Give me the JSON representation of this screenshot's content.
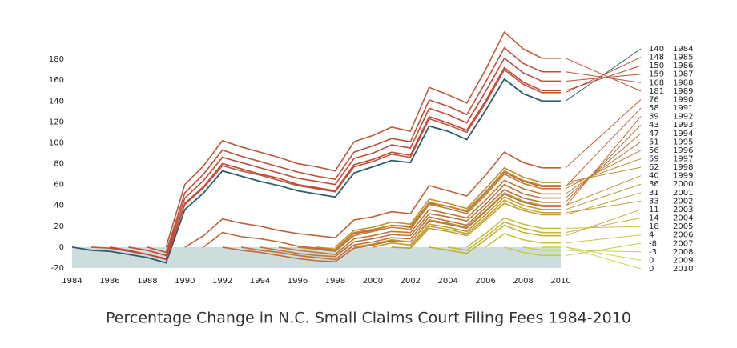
{
  "chart_data": {
    "type": "line",
    "title": "Percentage Change in N.C. Small Claims Court Filing Fees 1984-2010",
    "x": [
      1984,
      1985,
      1986,
      1987,
      1988,
      1989,
      1990,
      1991,
      1992,
      1993,
      1994,
      1995,
      1996,
      1997,
      1998,
      1999,
      2000,
      2001,
      2002,
      2003,
      2004,
      2005,
      2006,
      2007,
      2008,
      2009,
      2010
    ],
    "xlim": [
      1984,
      2010
    ],
    "xticks": [
      1984,
      1986,
      1988,
      1990,
      1992,
      1994,
      1996,
      1998,
      2000,
      2002,
      2004,
      2006,
      2008,
      2010
    ],
    "ylim": [
      -20,
      200
    ],
    "yticks": [
      -20,
      0,
      20,
      40,
      60,
      80,
      100,
      120,
      140,
      160,
      180
    ],
    "series": [
      {
        "name": "1984",
        "color": "#2b5f6b",
        "values": [
          0,
          -3,
          -4,
          -7,
          -10,
          -15,
          36,
          52,
          73,
          68,
          63,
          59,
          54,
          51,
          48,
          71,
          77,
          83,
          81,
          116,
          111,
          103,
          131,
          161,
          147,
          140,
          140
        ]
      },
      {
        "name": "1985",
        "color": "#c0553a",
        "values": [
          null,
          0,
          -1,
          -4,
          -7,
          -12,
          41,
          57,
          78,
          73,
          69,
          64,
          59,
          56,
          53,
          77,
          82,
          89,
          86,
          123,
          117,
          110,
          138,
          170,
          156,
          148,
          148
        ]
      },
      {
        "name": "1986",
        "color": "#c04838",
        "values": [
          null,
          null,
          0,
          -3,
          -7,
          -11,
          42,
          58,
          80,
          75,
          70,
          66,
          60,
          57,
          54,
          79,
          84,
          91,
          88,
          125,
          119,
          112,
          140,
          172,
          158,
          150,
          150
        ]
      },
      {
        "name": "1987",
        "color": "#c04a3a",
        "values": [
          null,
          null,
          null,
          0,
          -3,
          -8,
          47,
          64,
          86,
          81,
          76,
          71,
          66,
          63,
          60,
          85,
          90,
          98,
          95,
          133,
          127,
          119,
          149,
          181,
          167,
          159,
          159
        ]
      },
      {
        "name": "1988",
        "color": "#c0503a",
        "values": [
          null,
          null,
          null,
          null,
          0,
          -5,
          52,
          70,
          93,
          87,
          82,
          77,
          72,
          68,
          65,
          91,
          97,
          104,
          101,
          141,
          135,
          127,
          158,
          191,
          176,
          168,
          168
        ]
      },
      {
        "name": "1989",
        "color": "#c0583a",
        "values": [
          null,
          null,
          null,
          null,
          null,
          0,
          60,
          78,
          102,
          96,
          91,
          86,
          80,
          77,
          73,
          101,
          107,
          115,
          111,
          153,
          146,
          138,
          170,
          206,
          190,
          181,
          181
        ]
      },
      {
        "name": "1990",
        "color": "#c0603a",
        "values": [
          null,
          null,
          null,
          null,
          null,
          null,
          0,
          11,
          27,
          23,
          20,
          16,
          13,
          11,
          9,
          26,
          29,
          34,
          32,
          59,
          54,
          49,
          69,
          91,
          81,
          76,
          76
        ]
      },
      {
        "name": "1991",
        "color": "#c0683a",
        "values": [
          null,
          null,
          null,
          null,
          null,
          null,
          null,
          0,
          14,
          10,
          8,
          5,
          1,
          -1,
          -3,
          13,
          16,
          21,
          19,
          42,
          39,
          34,
          52,
          72,
          63,
          58,
          58
        ]
      },
      {
        "name": "1992",
        "color": "#c06c3a",
        "values": [
          null,
          null,
          null,
          null,
          null,
          null,
          null,
          null,
          0,
          -3,
          -5,
          -8,
          -11,
          -13,
          -14,
          -1,
          2,
          6,
          5,
          25,
          22,
          18,
          34,
          51,
          43,
          39,
          39
        ]
      },
      {
        "name": "1993",
        "color": "#c0703a",
        "values": [
          null,
          null,
          null,
          null,
          null,
          null,
          null,
          null,
          null,
          0,
          -3,
          -5,
          -8,
          -10,
          -12,
          2,
          5,
          9,
          8,
          29,
          25,
          21,
          38,
          55,
          47,
          43,
          43
        ]
      },
      {
        "name": "1994",
        "color": "#c07438",
        "values": [
          null,
          null,
          null,
          null,
          null,
          null,
          null,
          null,
          null,
          null,
          0,
          -3,
          -6,
          -8,
          -9,
          5,
          8,
          12,
          11,
          32,
          29,
          25,
          41,
          60,
          51,
          47,
          47
        ]
      },
      {
        "name": "1995",
        "color": "#c07836",
        "values": [
          null,
          null,
          null,
          null,
          null,
          null,
          null,
          null,
          null,
          null,
          null,
          0,
          -3,
          -5,
          -7,
          8,
          11,
          15,
          14,
          36,
          32,
          28,
          45,
          64,
          56,
          51,
          51
        ]
      },
      {
        "name": "1996",
        "color": "#c08034",
        "values": [
          null,
          null,
          null,
          null,
          null,
          null,
          null,
          null,
          null,
          null,
          null,
          null,
          0,
          -2,
          -4,
          11,
          15,
          19,
          17,
          41,
          37,
          32,
          50,
          70,
          61,
          56,
          56
        ]
      },
      {
        "name": "1997",
        "color": "#c08832",
        "values": [
          null,
          null,
          null,
          null,
          null,
          null,
          null,
          null,
          null,
          null,
          null,
          null,
          null,
          0,
          -2,
          14,
          17,
          21,
          20,
          43,
          39,
          35,
          53,
          73,
          64,
          59,
          59
        ]
      },
      {
        "name": "1998",
        "color": "#c09030",
        "values": [
          null,
          null,
          null,
          null,
          null,
          null,
          null,
          null,
          null,
          null,
          null,
          null,
          null,
          null,
          0,
          16,
          19,
          24,
          22,
          46,
          42,
          37,
          56,
          76,
          67,
          62,
          62
        ]
      },
      {
        "name": "1999",
        "color": "#c09430",
        "values": [
          null,
          null,
          null,
          null,
          null,
          null,
          null,
          null,
          null,
          null,
          null,
          null,
          null,
          null,
          null,
          0,
          3,
          7,
          5,
          26,
          23,
          19,
          35,
          52,
          44,
          40,
          40
        ]
      },
      {
        "name": "2000",
        "color": "#c09a32",
        "values": [
          null,
          null,
          null,
          null,
          null,
          null,
          null,
          null,
          null,
          null,
          null,
          null,
          null,
          null,
          null,
          null,
          0,
          4,
          2,
          22,
          19,
          15,
          31,
          48,
          40,
          36,
          36
        ]
      },
      {
        "name": "2001",
        "color": "#c0a034",
        "values": [
          null,
          null,
          null,
          null,
          null,
          null,
          null,
          null,
          null,
          null,
          null,
          null,
          null,
          null,
          null,
          null,
          null,
          0,
          -1,
          18,
          15,
          11,
          26,
          42,
          35,
          31,
          31
        ]
      },
      {
        "name": "2002",
        "color": "#c0a636",
        "values": [
          null,
          null,
          null,
          null,
          null,
          null,
          null,
          null,
          null,
          null,
          null,
          null,
          null,
          null,
          null,
          null,
          null,
          null,
          0,
          20,
          17,
          13,
          28,
          45,
          37,
          33,
          33
        ]
      },
      {
        "name": "2003",
        "color": "#c4b038",
        "values": [
          null,
          null,
          null,
          null,
          null,
          null,
          null,
          null,
          null,
          null,
          null,
          null,
          null,
          null,
          null,
          null,
          null,
          null,
          null,
          0,
          -3,
          -6,
          7,
          21,
          14,
          11,
          11
        ]
      },
      {
        "name": "2004",
        "color": "#c4b83c",
        "values": [
          null,
          null,
          null,
          null,
          null,
          null,
          null,
          null,
          null,
          null,
          null,
          null,
          null,
          null,
          null,
          null,
          null,
          null,
          null,
          null,
          0,
          -3,
          10,
          24,
          18,
          14,
          14
        ]
      },
      {
        "name": "2005",
        "color": "#c6c040",
        "values": [
          null,
          null,
          null,
          null,
          null,
          null,
          null,
          null,
          null,
          null,
          null,
          null,
          null,
          null,
          null,
          null,
          null,
          null,
          null,
          null,
          null,
          0,
          13,
          28,
          22,
          18,
          18
        ]
      },
      {
        "name": "2006",
        "color": "#c8c644",
        "values": [
          null,
          null,
          null,
          null,
          null,
          null,
          null,
          null,
          null,
          null,
          null,
          null,
          null,
          null,
          null,
          null,
          null,
          null,
          null,
          null,
          null,
          null,
          0,
          13,
          7,
          4,
          4
        ]
      },
      {
        "name": "2007",
        "color": "#c8ca48",
        "values": [
          null,
          null,
          null,
          null,
          null,
          null,
          null,
          null,
          null,
          null,
          null,
          null,
          null,
          null,
          null,
          null,
          null,
          null,
          null,
          null,
          null,
          null,
          null,
          0,
          -5,
          -8,
          -8
        ]
      },
      {
        "name": "2008",
        "color": "#cace4c",
        "values": [
          null,
          null,
          null,
          null,
          null,
          null,
          null,
          null,
          null,
          null,
          null,
          null,
          null,
          null,
          null,
          null,
          null,
          null,
          null,
          null,
          null,
          null,
          null,
          null,
          0,
          -3,
          -3
        ]
      },
      {
        "name": "2009",
        "color": "#ccd250",
        "values": [
          null,
          null,
          null,
          null,
          null,
          null,
          null,
          null,
          null,
          null,
          null,
          null,
          null,
          null,
          null,
          null,
          null,
          null,
          null,
          null,
          null,
          null,
          null,
          null,
          null,
          0,
          0
        ]
      },
      {
        "name": "2010",
        "color": "#ced654",
        "values": [
          null,
          null,
          null,
          null,
          null,
          null,
          null,
          null,
          null,
          null,
          null,
          null,
          null,
          null,
          null,
          null,
          null,
          null,
          null,
          null,
          null,
          null,
          null,
          null,
          null,
          null,
          0
        ]
      }
    ]
  }
}
